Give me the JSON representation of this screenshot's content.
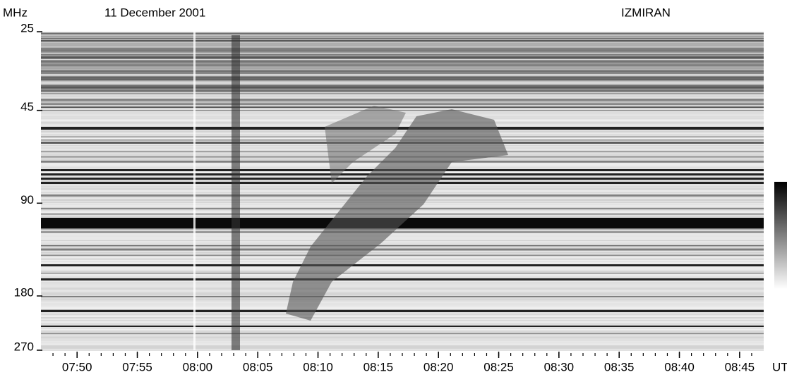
{
  "chart_data": {
    "type": "spectrogram",
    "title": "11 December 2001",
    "source": "IZMIRAN",
    "ylabel": "MHz",
    "xlabel": "UT",
    "ylim": [
      25,
      270
    ],
    "ylog": true,
    "yticks": [
      25,
      45,
      90,
      180,
      270
    ],
    "xlim": [
      "07:47",
      "08:47"
    ],
    "xticks": [
      "07:50",
      "07:55",
      "08:00",
      "08:05",
      "08:10",
      "08:15",
      "08:20",
      "08:25",
      "08:30",
      "08:35",
      "08:40",
      "08:45"
    ],
    "colorbar": true
  }
}
